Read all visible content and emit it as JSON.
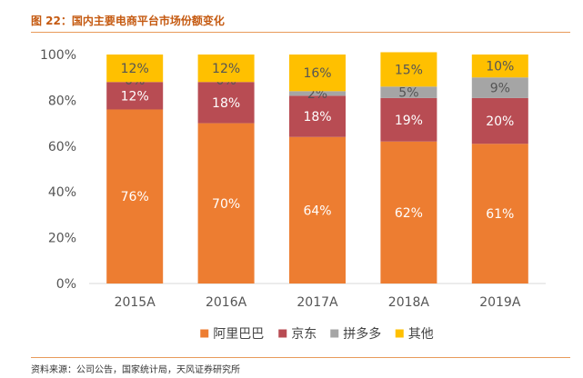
{
  "title": "图 22：国内主要电商平台市场份额变化",
  "source": "资料来源：公司公告，国家统计局，天风证券研究所",
  "colors": {
    "alibaba": "#ED7D31",
    "jd": "#B84C53",
    "pdd": "#A5A5A5",
    "other": "#FFC000",
    "axis": "#D9D9D9",
    "title": "#C55A11"
  },
  "chart_data": {
    "type": "bar",
    "stacked": true,
    "categories": [
      "2015A",
      "2016A",
      "2017A",
      "2018A",
      "2019A"
    ],
    "series": [
      {
        "name": "阿里巴巴",
        "color_key": "alibaba",
        "values": [
          76,
          70,
          64,
          62,
          61
        ],
        "labels": [
          "76%",
          "70%",
          "64%",
          "62%",
          "61%"
        ]
      },
      {
        "name": "京东",
        "color_key": "jd",
        "values": [
          12,
          18,
          18,
          19,
          20
        ],
        "labels": [
          "12%",
          "18%",
          "18%",
          "19%",
          "20%"
        ]
      },
      {
        "name": "拼多多",
        "color_key": "pdd",
        "values": [
          0,
          0,
          2,
          5,
          9
        ],
        "labels": [
          "0%",
          "0%",
          "2%",
          "5%",
          "9%"
        ]
      },
      {
        "name": "其他",
        "color_key": "other",
        "values": [
          12,
          12,
          16,
          15,
          10
        ],
        "labels": [
          "12%",
          "12%",
          "16%",
          "15%",
          "10%"
        ]
      }
    ],
    "yticks": [
      "0%",
      "20%",
      "40%",
      "60%",
      "80%",
      "100%"
    ],
    "ylim": [
      0,
      100
    ],
    "legend": "bottom",
    "xlabel": "",
    "ylabel": ""
  }
}
